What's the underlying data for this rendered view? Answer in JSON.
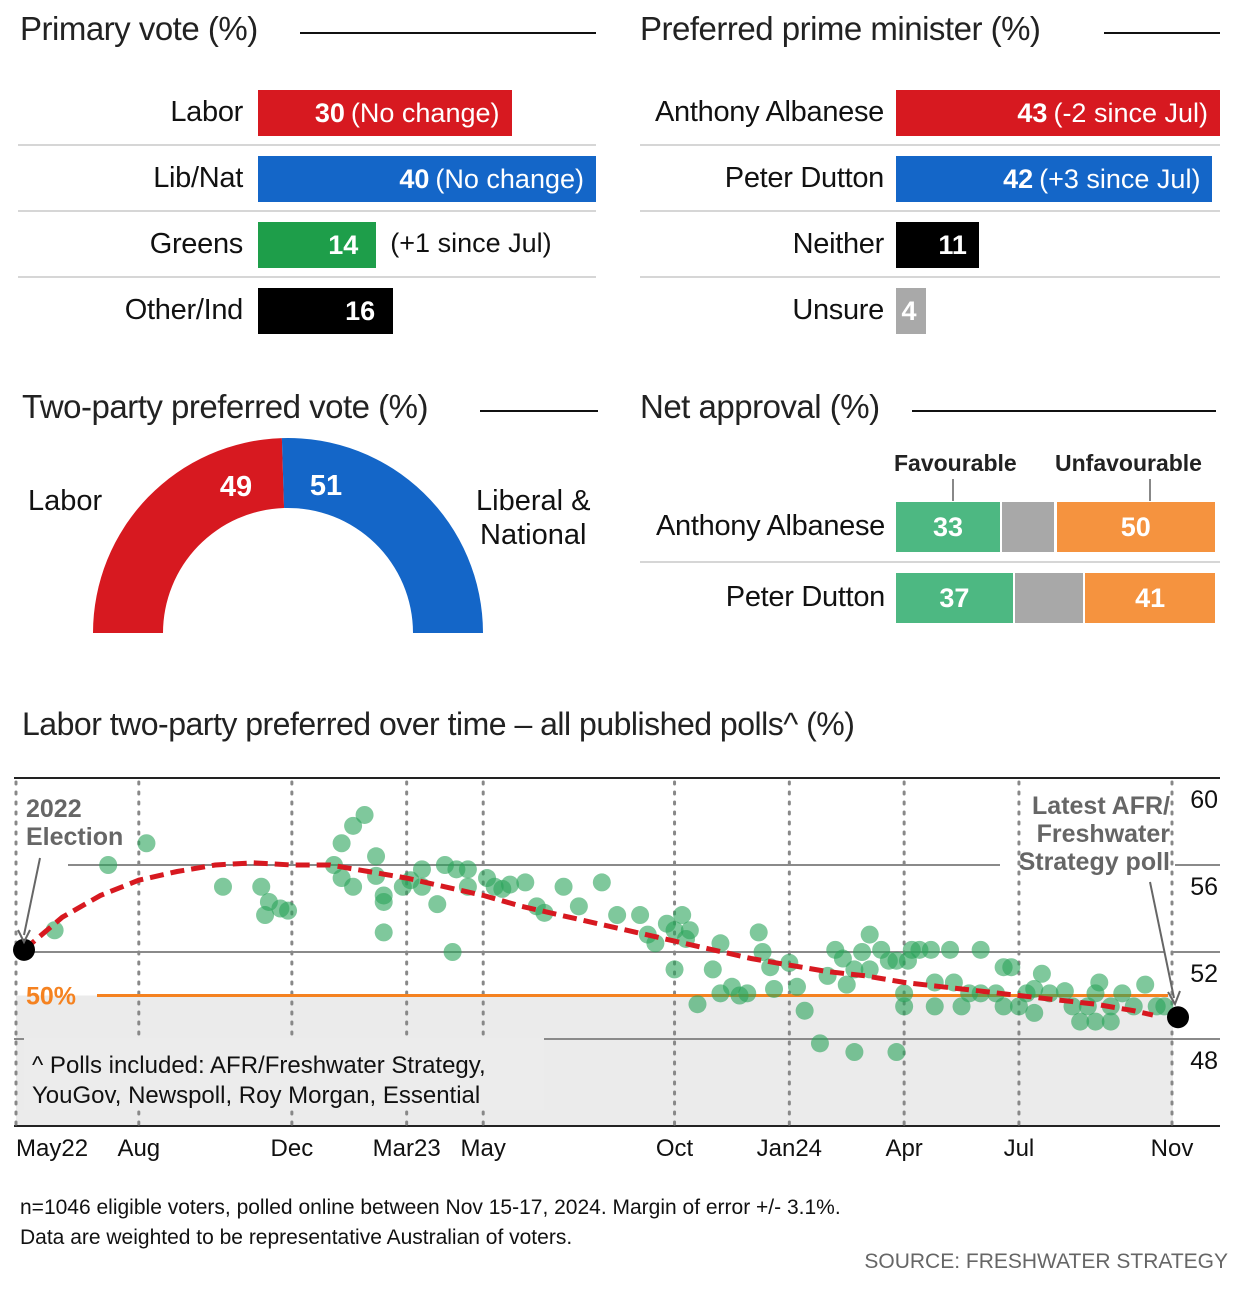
{
  "colors": {
    "labor_red": "#d71920",
    "coalition_blue": "#1466c8",
    "greens_green": "#1e9e4a",
    "black": "#000000",
    "unsure_grey": "#a9a9a9",
    "favourable_green": "#4db882",
    "neutral_grey": "#a8a8a8",
    "unfavourable_orange": "#f5933f",
    "fifty_orange": "#f58220",
    "dot_green": "#2aa35a",
    "trend_red": "#d71920"
  },
  "primary_vote": {
    "title": "Primary vote (%)",
    "rows": [
      {
        "label": "Labor",
        "value": 30,
        "value_text": "30",
        "note": "(No change)",
        "note_inside": true,
        "color": "#d71920"
      },
      {
        "label": "Lib/Nat",
        "value": 40,
        "value_text": "40",
        "note": "(No change)",
        "note_inside": true,
        "color": "#1466c8"
      },
      {
        "label": "Greens",
        "value": 14,
        "value_text": "14",
        "note": "(+1 since Jul)",
        "note_inside": false,
        "color": "#1e9e4a"
      },
      {
        "label": "Other/Ind",
        "value": 16,
        "value_text": "16",
        "note": "",
        "note_inside": false,
        "color": "#000000"
      }
    ]
  },
  "preferred_pm": {
    "title": "Preferred prime minister (%)",
    "rows": [
      {
        "label": "Anthony Albanese",
        "value": 43,
        "value_text": "43",
        "note": "(-2 since Jul)",
        "color": "#d71920"
      },
      {
        "label": "Peter Dutton",
        "value": 42,
        "value_text": "42",
        "note": "(+3 since Jul)",
        "color": "#1466c8"
      },
      {
        "label": "Neither",
        "value": 11,
        "value_text": "11",
        "note": "",
        "color": "#000000"
      },
      {
        "label": "Unsure",
        "value": 4,
        "value_text": "4",
        "note": "",
        "color": "#a9a9a9"
      }
    ]
  },
  "two_party": {
    "title": "Two-party preferred vote (%)",
    "labor_label": "Labor",
    "labor_value": 49,
    "labor_value_text": "49",
    "coalition_label_1": "Liberal &",
    "coalition_label_2": "National",
    "coalition_value": 51,
    "coalition_value_text": "51"
  },
  "net_approval": {
    "title": "Net approval (%)",
    "favourable_label": "Favourable",
    "unfavourable_label": "Unfavourable",
    "rows": [
      {
        "label": "Anthony Albanese",
        "favourable": 33,
        "neutral": 17,
        "unfavourable": 50,
        "fav_text": "33",
        "unfav_text": "50"
      },
      {
        "label": "Peter Dutton",
        "favourable": 37,
        "neutral": 22,
        "unfavourable": 41,
        "fav_text": "37",
        "unfav_text": "41"
      }
    ]
  },
  "chart_data": {
    "type": "scatter",
    "title": "Labor two-party preferred over time – all published polls^ (%)",
    "xlabel": "",
    "ylabel": "",
    "x_unit": "months since May 2022",
    "xlim": [
      0,
      30
    ],
    "ylim": [
      46,
      60.9
    ],
    "x_ticks": [
      {
        "label": "May22",
        "x": 0
      },
      {
        "label": "Aug",
        "x": 3
      },
      {
        "label": "Dec",
        "x": 7
      },
      {
        "label": "Mar23",
        "x": 10
      },
      {
        "label": "May",
        "x": 12
      },
      {
        "label": "Oct",
        "x": 17
      },
      {
        "label": "Jan24",
        "x": 20
      },
      {
        "label": "Apr",
        "x": 23
      },
      {
        "label": "Jul",
        "x": 26
      },
      {
        "label": "Nov",
        "x": 30
      }
    ],
    "y_ticks": [
      {
        "label": "60",
        "y": 60
      },
      {
        "label": "56",
        "y": 56
      },
      {
        "label": "52",
        "y": 52
      },
      {
        "label": "48",
        "y": 48
      }
    ],
    "gridlines_y": [
      56,
      52,
      48
    ],
    "reference_line": {
      "y": 50,
      "label": "50%"
    },
    "shaded_below": 50,
    "grid": true,
    "annotations": [
      {
        "text_1": "2022",
        "text_2": "Election",
        "x": 0,
        "y": 52.1
      },
      {
        "text_1": "Latest AFR/",
        "text_2": "Freshwater",
        "text_3": "Strategy poll",
        "x": 30,
        "y": 49
      }
    ],
    "highlight_points": [
      {
        "name": "2022 Election",
        "x": 0,
        "y": 52.1
      },
      {
        "name": "Latest AFR/Freshwater Strategy poll",
        "x": 30,
        "y": 49
      }
    ],
    "footnote_1": "^ Polls included: AFR/Freshwater Strategy,",
    "footnote_2": "YouGov, Newspoll, Roy Morgan, Essential",
    "trend": [
      {
        "x": 0,
        "y": 52.1
      },
      {
        "x": 1,
        "y": 53.6
      },
      {
        "x": 2,
        "y": 54.6
      },
      {
        "x": 3,
        "y": 55.3
      },
      {
        "x": 4,
        "y": 55.7
      },
      {
        "x": 5,
        "y": 56.0
      },
      {
        "x": 6,
        "y": 56.1
      },
      {
        "x": 7,
        "y": 56.0
      },
      {
        "x": 8,
        "y": 56.0
      },
      {
        "x": 9,
        "y": 55.7
      },
      {
        "x": 10,
        "y": 55.4
      },
      {
        "x": 11,
        "y": 55.0
      },
      {
        "x": 12,
        "y": 54.6
      },
      {
        "x": 13,
        "y": 54.1
      },
      {
        "x": 14,
        "y": 53.7
      },
      {
        "x": 15,
        "y": 53.3
      },
      {
        "x": 16,
        "y": 52.9
      },
      {
        "x": 17,
        "y": 52.5
      },
      {
        "x": 18,
        "y": 52.1
      },
      {
        "x": 19,
        "y": 51.7
      },
      {
        "x": 20,
        "y": 51.4
      },
      {
        "x": 21,
        "y": 51.1
      },
      {
        "x": 22,
        "y": 50.9
      },
      {
        "x": 23,
        "y": 50.6
      },
      {
        "x": 24,
        "y": 50.4
      },
      {
        "x": 25,
        "y": 50.2
      },
      {
        "x": 26,
        "y": 50.0
      },
      {
        "x": 27,
        "y": 49.8
      },
      {
        "x": 28,
        "y": 49.6
      },
      {
        "x": 29,
        "y": 49.3
      },
      {
        "x": 29.5,
        "y": 49.1
      }
    ],
    "points": [
      {
        "x": 0.8,
        "y": 53.0
      },
      {
        "x": 2.2,
        "y": 56.0
      },
      {
        "x": 3.2,
        "y": 57.0
      },
      {
        "x": 5.2,
        "y": 55.0
      },
      {
        "x": 6.2,
        "y": 55.0
      },
      {
        "x": 6.4,
        "y": 54.3
      },
      {
        "x": 6.7,
        "y": 54.0
      },
      {
        "x": 6.3,
        "y": 53.7
      },
      {
        "x": 6.9,
        "y": 53.9
      },
      {
        "x": 8.1,
        "y": 56.0
      },
      {
        "x": 8.3,
        "y": 57.0
      },
      {
        "x": 8.6,
        "y": 57.8
      },
      {
        "x": 8.9,
        "y": 58.3
      },
      {
        "x": 8.3,
        "y": 55.4
      },
      {
        "x": 8.6,
        "y": 55.0
      },
      {
        "x": 9.2,
        "y": 56.4
      },
      {
        "x": 9.2,
        "y": 55.5
      },
      {
        "x": 9.4,
        "y": 54.6
      },
      {
        "x": 9.4,
        "y": 54.3
      },
      {
        "x": 9.4,
        "y": 52.9
      },
      {
        "x": 9.9,
        "y": 55.0
      },
      {
        "x": 10.1,
        "y": 55.3
      },
      {
        "x": 10.4,
        "y": 55.8
      },
      {
        "x": 10.4,
        "y": 55.0
      },
      {
        "x": 10.8,
        "y": 54.2
      },
      {
        "x": 11.0,
        "y": 56.0
      },
      {
        "x": 11.3,
        "y": 55.8
      },
      {
        "x": 11.6,
        "y": 55.8
      },
      {
        "x": 11.6,
        "y": 55.0
      },
      {
        "x": 11.2,
        "y": 52.0
      },
      {
        "x": 12.1,
        "y": 55.4
      },
      {
        "x": 12.3,
        "y": 55.0
      },
      {
        "x": 12.5,
        "y": 54.9
      },
      {
        "x": 12.7,
        "y": 55.1
      },
      {
        "x": 13.1,
        "y": 55.2
      },
      {
        "x": 13.4,
        "y": 54.1
      },
      {
        "x": 13.6,
        "y": 53.8
      },
      {
        "x": 14.1,
        "y": 55.0
      },
      {
        "x": 14.5,
        "y": 54.1
      },
      {
        "x": 15.1,
        "y": 55.2
      },
      {
        "x": 15.5,
        "y": 53.7
      },
      {
        "x": 16.1,
        "y": 53.7
      },
      {
        "x": 16.3,
        "y": 52.8
      },
      {
        "x": 16.5,
        "y": 52.4
      },
      {
        "x": 16.8,
        "y": 53.3
      },
      {
        "x": 17.0,
        "y": 53.0
      },
      {
        "x": 17.2,
        "y": 53.7
      },
      {
        "x": 17.0,
        "y": 51.2
      },
      {
        "x": 17.3,
        "y": 52.6
      },
      {
        "x": 17.4,
        "y": 53.0
      },
      {
        "x": 18.2,
        "y": 52.4
      },
      {
        "x": 18.0,
        "y": 51.2
      },
      {
        "x": 18.2,
        "y": 50.1
      },
      {
        "x": 17.6,
        "y": 49.6
      },
      {
        "x": 18.5,
        "y": 50.4
      },
      {
        "x": 18.7,
        "y": 50.0
      },
      {
        "x": 18.9,
        "y": 50.1
      },
      {
        "x": 19.2,
        "y": 52.9
      },
      {
        "x": 19.3,
        "y": 52.0
      },
      {
        "x": 19.5,
        "y": 51.3
      },
      {
        "x": 19.6,
        "y": 50.3
      },
      {
        "x": 20.0,
        "y": 51.5
      },
      {
        "x": 20.2,
        "y": 50.4
      },
      {
        "x": 20.4,
        "y": 49.3
      },
      {
        "x": 20.8,
        "y": 47.8
      },
      {
        "x": 21.2,
        "y": 52.1
      },
      {
        "x": 21.4,
        "y": 51.7
      },
      {
        "x": 21.7,
        "y": 51.2
      },
      {
        "x": 21.5,
        "y": 50.5
      },
      {
        "x": 21.0,
        "y": 50.9
      },
      {
        "x": 21.9,
        "y": 52.0
      },
      {
        "x": 22.1,
        "y": 52.8
      },
      {
        "x": 22.4,
        "y": 52.1
      },
      {
        "x": 22.6,
        "y": 51.6
      },
      {
        "x": 22.8,
        "y": 51.6
      },
      {
        "x": 23.1,
        "y": 51.6
      },
      {
        "x": 22.1,
        "y": 51.2
      },
      {
        "x": 21.7,
        "y": 47.4
      },
      {
        "x": 22.8,
        "y": 47.4
      },
      {
        "x": 23.0,
        "y": 50.1
      },
      {
        "x": 23.2,
        "y": 52.1
      },
      {
        "x": 23.4,
        "y": 52.1
      },
      {
        "x": 23.7,
        "y": 52.1
      },
      {
        "x": 24.2,
        "y": 52.1
      },
      {
        "x": 23.8,
        "y": 50.6
      },
      {
        "x": 24.3,
        "y": 50.6
      },
      {
        "x": 23.0,
        "y": 49.5
      },
      {
        "x": 24.5,
        "y": 49.5
      },
      {
        "x": 23.8,
        "y": 49.5
      },
      {
        "x": 24.7,
        "y": 50.1
      },
      {
        "x": 25.0,
        "y": 52.1
      },
      {
        "x": 25.0,
        "y": 50.1
      },
      {
        "x": 25.4,
        "y": 50.1
      },
      {
        "x": 25.6,
        "y": 51.3
      },
      {
        "x": 25.8,
        "y": 51.3
      },
      {
        "x": 26.0,
        "y": 49.5
      },
      {
        "x": 25.6,
        "y": 49.5
      },
      {
        "x": 26.2,
        "y": 50.1
      },
      {
        "x": 26.4,
        "y": 50.3
      },
      {
        "x": 26.4,
        "y": 49.2
      },
      {
        "x": 26.8,
        "y": 50.1
      },
      {
        "x": 27.2,
        "y": 50.2
      },
      {
        "x": 27.4,
        "y": 49.5
      },
      {
        "x": 27.8,
        "y": 49.5
      },
      {
        "x": 27.6,
        "y": 48.8
      },
      {
        "x": 28.0,
        "y": 48.8
      },
      {
        "x": 28.4,
        "y": 48.8
      },
      {
        "x": 28.1,
        "y": 50.6
      },
      {
        "x": 28.4,
        "y": 49.5
      },
      {
        "x": 28.7,
        "y": 50.1
      },
      {
        "x": 29.0,
        "y": 49.5
      },
      {
        "x": 29.3,
        "y": 50.5
      },
      {
        "x": 29.6,
        "y": 49.5
      },
      {
        "x": 29.8,
        "y": 49.5
      },
      {
        "x": 28.0,
        "y": 50.1
      },
      {
        "x": 26.6,
        "y": 51.0
      }
    ]
  },
  "footer": {
    "note_1": "n=1046 eligible voters, polled online between Nov 15-17, 2024. Margin of error +/- 3.1%.",
    "note_2": "Data are weighted to be representative Australian of voters.",
    "source": "SOURCE: FRESHWATER STRATEGY"
  }
}
